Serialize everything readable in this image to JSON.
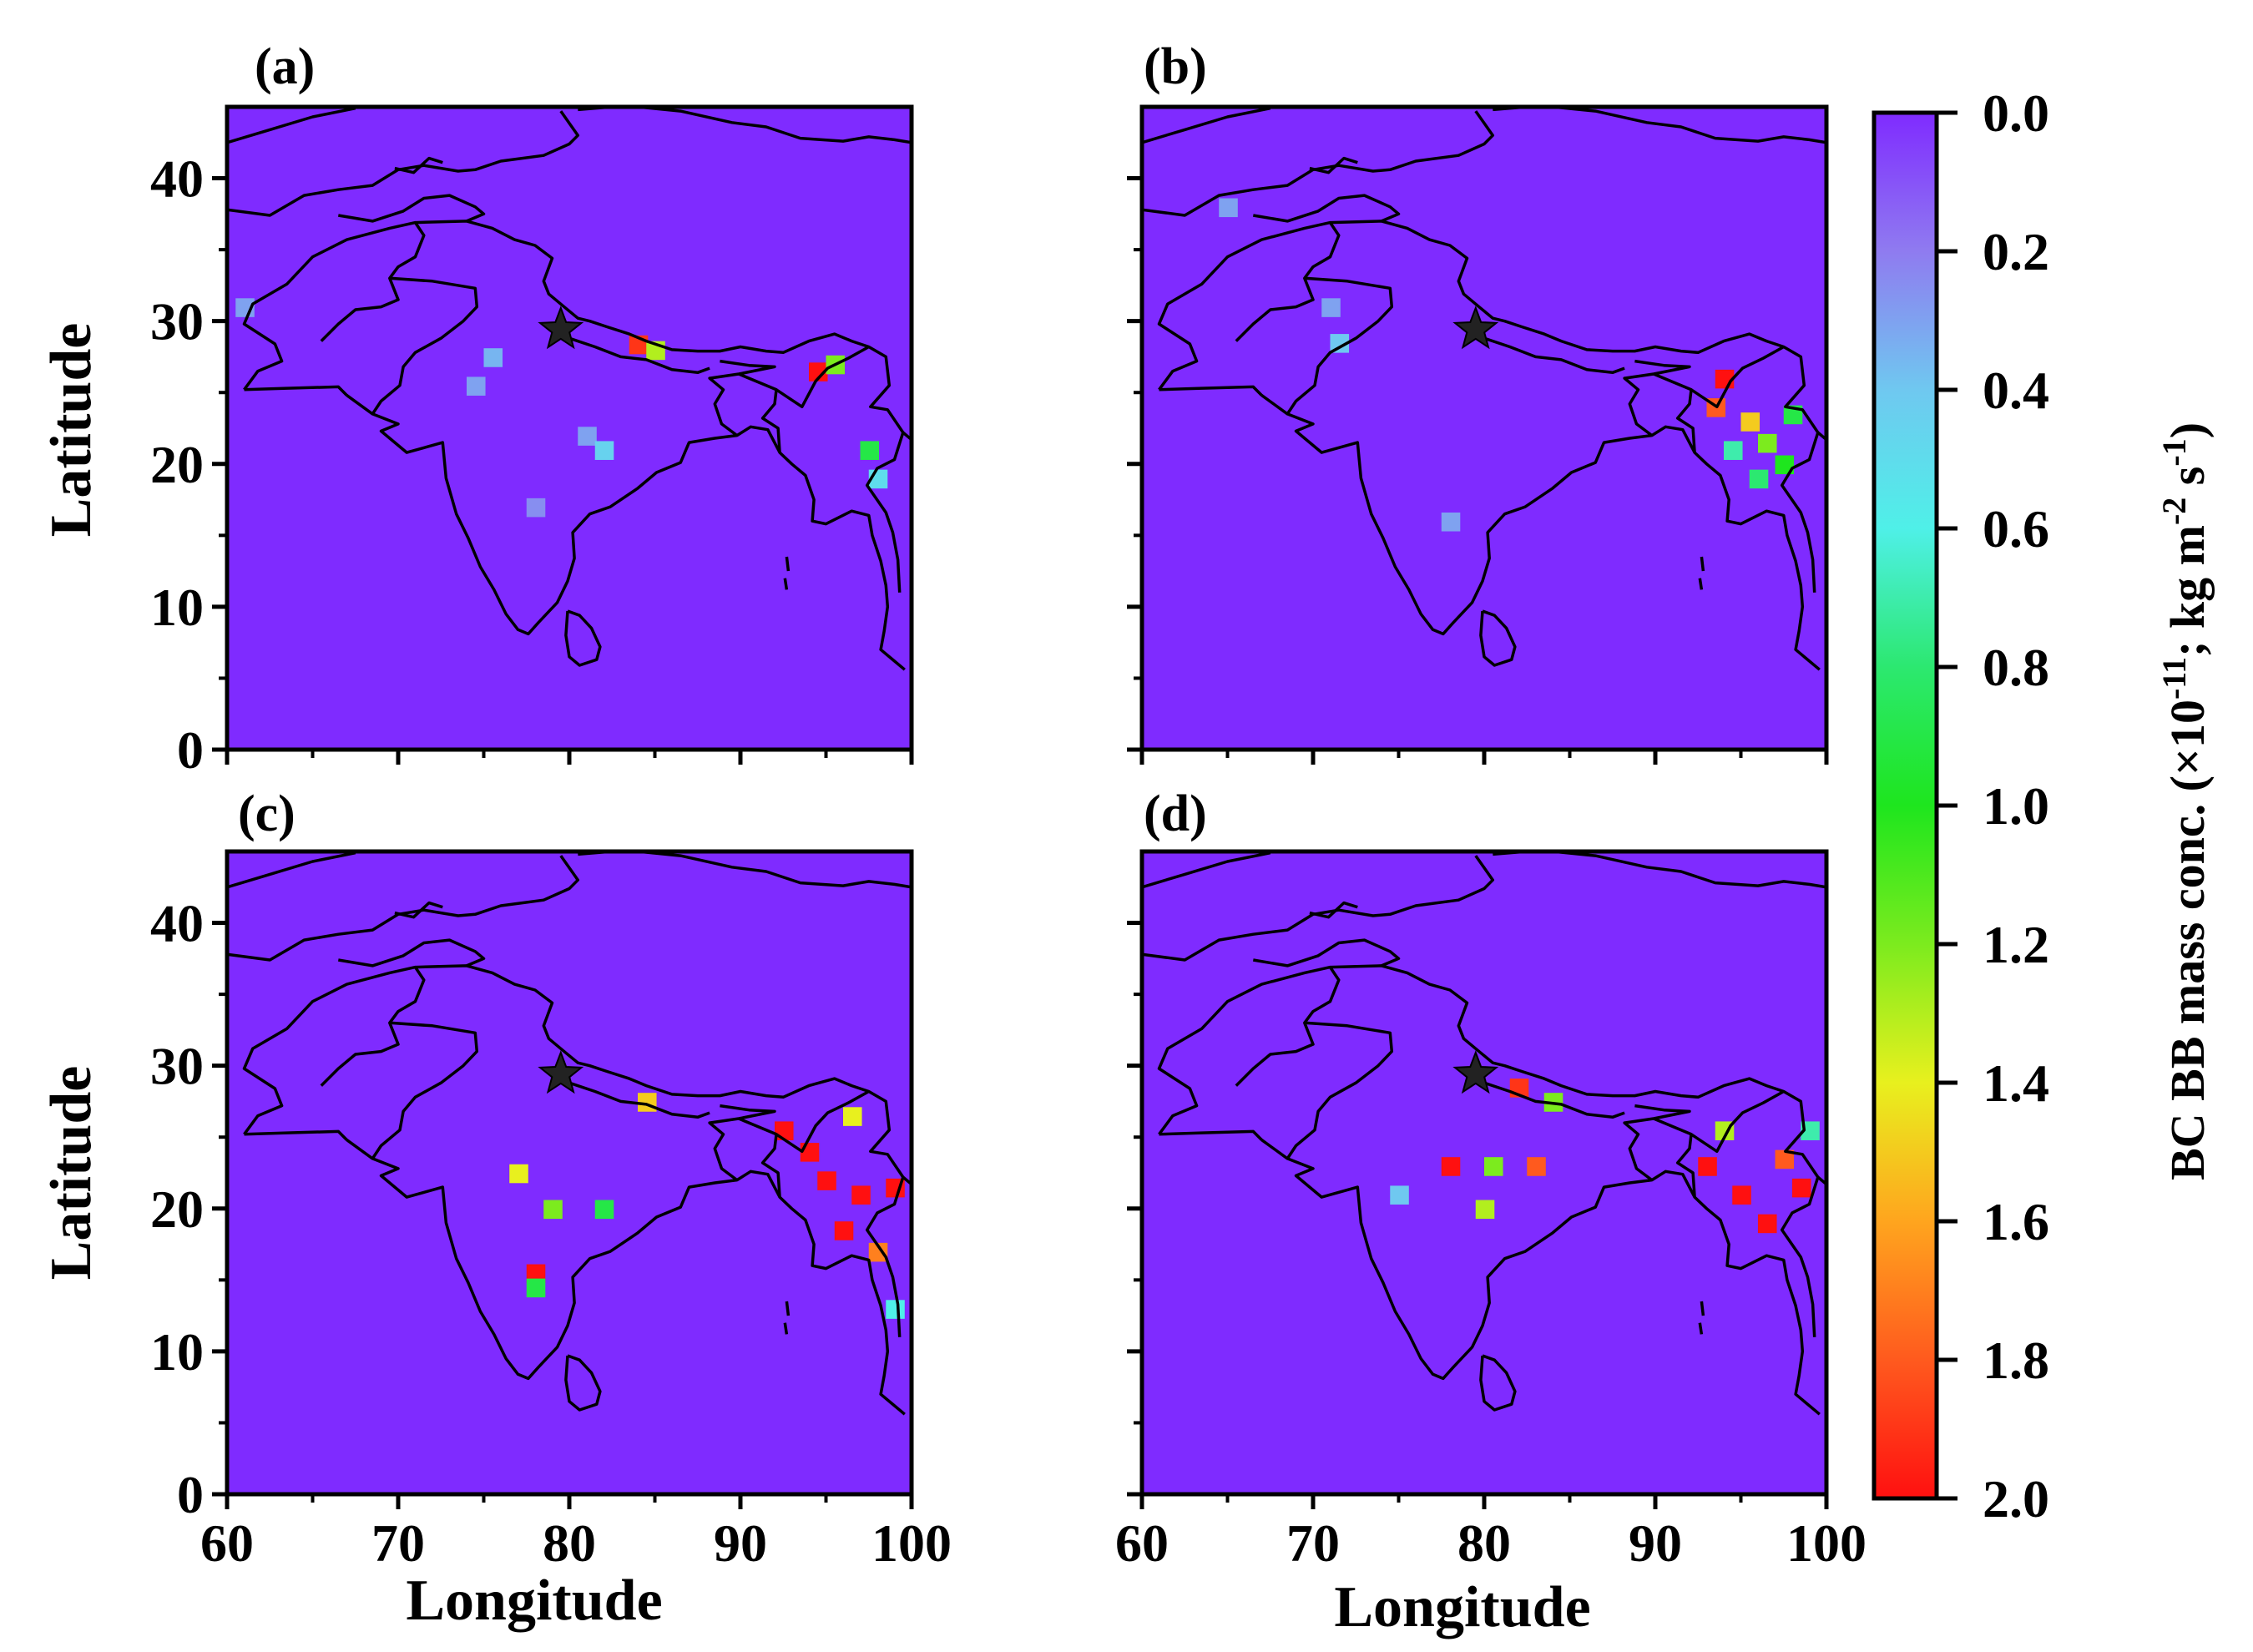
{
  "chart_data": {
    "type": "heatmap",
    "description_free": true,
    "x_ticks": [
      60,
      70,
      80,
      90,
      100
    ],
    "y_ticks": [
      0,
      10,
      20,
      30,
      40
    ],
    "xlim": [
      60,
      100
    ],
    "ylim": [
      0,
      45
    ],
    "xlabel": "Longitude",
    "ylabel": "Latitude",
    "station_marker": {
      "lon": 79.5,
      "lat": 29.4,
      "symbol": "star"
    },
    "colorbar": {
      "ticks": [
        "0.0",
        "0.2",
        "0.4",
        "0.6",
        "0.8",
        "1.0",
        "1.2",
        "1.4",
        "1.6",
        "1.8",
        "2.0"
      ],
      "range": [
        0.0,
        2.0
      ],
      "label_main": "BC BB mass conc. (×10",
      "label_exp1": "-11",
      "label_mid": "; kg m",
      "label_exp2": "-2",
      "label_end": " s",
      "label_exp3": "-1",
      "label_close": ")",
      "colors": [
        "#7F2BFF",
        "#8F7BF0",
        "#6FC8F0",
        "#4FF0E8",
        "#2CE870",
        "#1EE61E",
        "#7CEB1E",
        "#E8F01E",
        "#FFA51E",
        "#FF5A1E",
        "#FF1010"
      ]
    },
    "panels": [
      {
        "label": "(a)",
        "hotspots": [
          {
            "lon": 75.5,
            "lat": 27.5,
            "v": 0.35
          },
          {
            "lon": 74.5,
            "lat": 25.5,
            "v": 0.3
          },
          {
            "lon": 81,
            "lat": 22,
            "v": 0.3
          },
          {
            "lon": 84,
            "lat": 28.4,
            "v": 1.9
          },
          {
            "lon": 85,
            "lat": 28,
            "v": 1.3
          },
          {
            "lon": 94.5,
            "lat": 26.5,
            "v": 2.0
          },
          {
            "lon": 95.5,
            "lat": 27,
            "v": 1.2
          },
          {
            "lon": 97.5,
            "lat": 21,
            "v": 0.9
          },
          {
            "lon": 98,
            "lat": 19,
            "v": 0.5
          },
          {
            "lon": 78,
            "lat": 17,
            "v": 0.25
          },
          {
            "lon": 82,
            "lat": 21,
            "v": 0.45
          },
          {
            "lon": 61,
            "lat": 31,
            "v": 0.3
          }
        ]
      },
      {
        "label": "(b)",
        "hotspots": [
          {
            "lon": 71.5,
            "lat": 28.5,
            "v": 0.4
          },
          {
            "lon": 71,
            "lat": 31,
            "v": 0.3
          },
          {
            "lon": 94,
            "lat": 26,
            "v": 2.0
          },
          {
            "lon": 93.5,
            "lat": 24,
            "v": 1.8
          },
          {
            "lon": 95.5,
            "lat": 23,
            "v": 1.5
          },
          {
            "lon": 96.5,
            "lat": 21.5,
            "v": 1.2
          },
          {
            "lon": 97.5,
            "lat": 20,
            "v": 1.0
          },
          {
            "lon": 96,
            "lat": 19,
            "v": 0.8
          },
          {
            "lon": 98,
            "lat": 23.5,
            "v": 0.9
          },
          {
            "lon": 94.5,
            "lat": 21,
            "v": 0.7
          },
          {
            "lon": 78,
            "lat": 16,
            "v": 0.3
          },
          {
            "lon": 65,
            "lat": 38,
            "v": 0.3
          }
        ]
      },
      {
        "label": "(c)",
        "hotspots": [
          {
            "lon": 77,
            "lat": 22.5,
            "v": 1.4
          },
          {
            "lon": 79,
            "lat": 20,
            "v": 1.2
          },
          {
            "lon": 78,
            "lat": 15.5,
            "v": 2.0
          },
          {
            "lon": 78,
            "lat": 14.5,
            "v": 0.9
          },
          {
            "lon": 82,
            "lat": 20,
            "v": 0.9
          },
          {
            "lon": 92.5,
            "lat": 25.5,
            "v": 2.0
          },
          {
            "lon": 94,
            "lat": 24,
            "v": 2.0
          },
          {
            "lon": 95,
            "lat": 22,
            "v": 2.0
          },
          {
            "lon": 97,
            "lat": 21,
            "v": 2.0
          },
          {
            "lon": 99,
            "lat": 21.5,
            "v": 2.0
          },
          {
            "lon": 96,
            "lat": 18.5,
            "v": 2.0
          },
          {
            "lon": 98,
            "lat": 17,
            "v": 1.7
          },
          {
            "lon": 96.5,
            "lat": 26.5,
            "v": 1.4
          },
          {
            "lon": 84.5,
            "lat": 27.5,
            "v": 1.5
          },
          {
            "lon": 99,
            "lat": 13,
            "v": 0.6
          }
        ]
      },
      {
        "label": "(d)",
        "hotspots": [
          {
            "lon": 78,
            "lat": 23,
            "v": 2.0
          },
          {
            "lon": 80.5,
            "lat": 23,
            "v": 1.2
          },
          {
            "lon": 83,
            "lat": 23,
            "v": 1.8
          },
          {
            "lon": 80,
            "lat": 20,
            "v": 1.3
          },
          {
            "lon": 82,
            "lat": 28.5,
            "v": 1.9
          },
          {
            "lon": 84,
            "lat": 27.5,
            "v": 1.2
          },
          {
            "lon": 93,
            "lat": 23,
            "v": 2.0
          },
          {
            "lon": 95,
            "lat": 21,
            "v": 2.0
          },
          {
            "lon": 96.5,
            "lat": 19,
            "v": 2.0
          },
          {
            "lon": 97.5,
            "lat": 23.5,
            "v": 1.8
          },
          {
            "lon": 98.5,
            "lat": 21.5,
            "v": 2.0
          },
          {
            "lon": 94,
            "lat": 25.5,
            "v": 1.3
          },
          {
            "lon": 99,
            "lat": 25.5,
            "v": 0.7
          },
          {
            "lon": 75,
            "lat": 21,
            "v": 0.4
          }
        ]
      }
    ]
  }
}
